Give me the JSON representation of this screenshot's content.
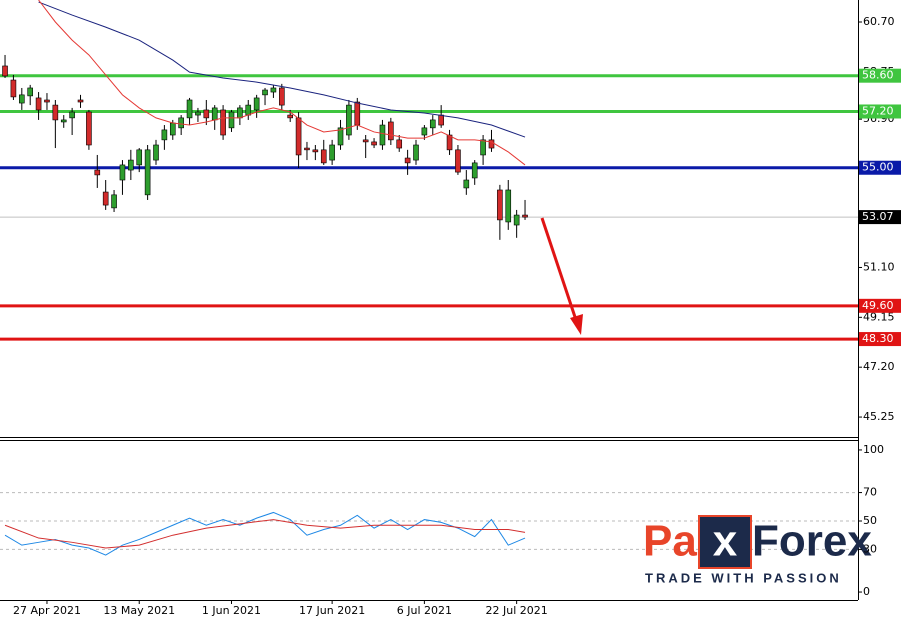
{
  "chart_data": {
    "type": "candlestick",
    "up_color": "#2e9e2e",
    "down_color": "#d22b2b",
    "candles": {
      "open": [
        58.98,
        58.43,
        57.53,
        57.81,
        57.73,
        57.65,
        57.45,
        56.79,
        56.95,
        57.65,
        57.18,
        54.91,
        54.05,
        53.43,
        54.52,
        54.91,
        55.11,
        53.94,
        55.3,
        56.09,
        56.28,
        56.56,
        56.95,
        57.06,
        57.26,
        56.87,
        57.26,
        56.56,
        56.95,
        57.06,
        57.26,
        57.85,
        57.96,
        58.12,
        57.06,
        56.95,
        55.77,
        55.7,
        55.7,
        55.3,
        55.89,
        56.28,
        57.57,
        56.09,
        56.01,
        55.89,
        56.79,
        56.09,
        55.38,
        55.3,
        56.28,
        56.56,
        57.06,
        56.28,
        55.7,
        54.21,
        54.6,
        55.5,
        56.09,
        54.13,
        52.88,
        52.76,
        53.15
      ],
      "high": [
        59.41,
        58.63,
        58.12,
        58.24,
        57.96,
        57.92,
        57.65,
        57.06,
        57.34,
        57.85,
        57.26,
        55.5,
        54.52,
        54.13,
        55.3,
        55.7,
        55.77,
        55.89,
        56.09,
        56.67,
        56.87,
        57.06,
        57.73,
        57.34,
        57.65,
        57.45,
        57.45,
        57.26,
        57.45,
        57.65,
        57.85,
        58.12,
        58.24,
        58.28,
        57.26,
        57.18,
        56.01,
        55.89,
        56.09,
        56.09,
        56.87,
        57.65,
        57.73,
        56.28,
        56.16,
        56.87,
        56.95,
        56.28,
        55.7,
        56.09,
        56.67,
        57.06,
        57.45,
        56.48,
        55.89,
        54.91,
        55.3,
        56.28,
        56.48,
        54.33,
        54.52,
        53.35,
        53.74
      ],
      "low": [
        58.51,
        57.65,
        57.26,
        57.45,
        56.87,
        57.26,
        55.77,
        56.56,
        56.28,
        57.34,
        55.7,
        54.21,
        53.35,
        53.27,
        53.94,
        54.52,
        54.83,
        53.74,
        55.11,
        55.7,
        56.09,
        56.28,
        56.67,
        56.79,
        56.67,
        56.48,
        56.09,
        56.4,
        56.67,
        56.87,
        56.95,
        57.45,
        57.73,
        57.26,
        56.79,
        54.99,
        55.3,
        55.3,
        55.11,
        55.11,
        55.7,
        56.09,
        56.48,
        55.38,
        55.77,
        55.7,
        55.89,
        55.62,
        54.72,
        55.11,
        56.09,
        56.28,
        56.56,
        55.5,
        54.72,
        53.94,
        54.33,
        55.11,
        55.62,
        52.18,
        52.57,
        52.26,
        52.96
      ],
      "close": [
        58.59,
        57.77,
        57.85,
        58.12,
        57.26,
        57.57,
        56.87,
        56.87,
        57.18,
        57.57,
        55.89,
        54.72,
        53.54,
        53.94,
        55.11,
        55.3,
        55.7,
        55.7,
        55.89,
        56.48,
        56.75,
        56.95,
        57.65,
        57.18,
        56.95,
        57.34,
        56.28,
        57.18,
        57.34,
        57.45,
        57.73,
        58.04,
        58.12,
        57.45,
        56.95,
        55.5,
        55.7,
        55.62,
        55.19,
        55.89,
        56.56,
        57.45,
        56.67,
        56.01,
        55.89,
        56.67,
        56.09,
        55.77,
        55.19,
        55.89,
        56.56,
        56.87,
        56.67,
        55.7,
        54.83,
        54.52,
        55.19,
        56.09,
        55.77,
        52.96,
        54.13,
        53.15,
        53.07
      ]
    },
    "xlim": [
      -0.6,
      101.7
    ],
    "xticks": [
      {
        "value": 5,
        "label": "27 Apr 2021"
      },
      {
        "value": 16,
        "label": "13 May 2021"
      },
      {
        "value": 27,
        "label": "1 Jun 2021"
      },
      {
        "value": 39,
        "label": "17 Jun 2021"
      },
      {
        "value": 50,
        "label": "6 Jul 2021"
      },
      {
        "value": 61,
        "label": "22 Jul 2021"
      }
    ],
    "ylim": [
      44.47,
      61.56
    ],
    "yticks": [
      {
        "value": 60.7,
        "label": "60.70"
      },
      {
        "value": 58.75,
        "label": "58.75"
      },
      {
        "value": 56.9,
        "label": "56.90"
      },
      {
        "value": 51.1,
        "label": "51.10"
      },
      {
        "value": 49.15,
        "label": "49.15"
      },
      {
        "value": 47.2,
        "label": "47.20"
      },
      {
        "value": 45.25,
        "label": "45.25"
      }
    ],
    "moving_averages": [
      {
        "color": "#1a237e",
        "x": [
          4,
          8,
          12,
          16,
          20,
          22,
          26,
          30,
          34,
          38,
          42,
          46,
          50,
          54,
          58,
          62
        ],
        "values": [
          61.48,
          60.97,
          60.5,
          59.99,
          59.21,
          58.74,
          58.51,
          58.35,
          58.12,
          57.85,
          57.53,
          57.26,
          57.14,
          56.95,
          56.67,
          56.2
        ]
      },
      {
        "color": "#e53935",
        "x": [
          4,
          6,
          8,
          10,
          12,
          14,
          16,
          18,
          20,
          22,
          24,
          26,
          28,
          30,
          32,
          34,
          36,
          38,
          40,
          42,
          44,
          46,
          48,
          50,
          52,
          54,
          56,
          58,
          60,
          62
        ],
        "values": [
          61.56,
          60.7,
          59.99,
          59.41,
          58.63,
          57.85,
          57.34,
          56.95,
          56.75,
          56.67,
          56.79,
          56.95,
          56.95,
          57.18,
          57.34,
          57.18,
          56.67,
          56.4,
          56.48,
          56.67,
          56.4,
          56.28,
          56.16,
          56.16,
          56.4,
          56.09,
          56.09,
          56.01,
          55.62,
          55.11
        ]
      }
    ],
    "levels": [
      {
        "value": 58.6,
        "label": "58.60",
        "color": "#3fc53f"
      },
      {
        "value": 57.2,
        "label": "57.20",
        "color": "#3fc53f"
      },
      {
        "value": 55,
        "label": "55.00",
        "color": "#0a1aa8"
      },
      {
        "value": 49.6,
        "label": "49.60",
        "color": "#e01414"
      },
      {
        "value": 48.3,
        "label": "48.30",
        "color": "#e01414"
      }
    ],
    "current": {
      "value": 53.07,
      "label": "53.07",
      "color": "#000000"
    },
    "indicator": {
      "type": "line",
      "ylim": [
        -5.6,
        107
      ],
      "yticks": [
        100,
        70,
        50,
        30,
        0
      ],
      "levels": [
        70,
        50,
        30
      ],
      "series": [
        {
          "color": "#1e88e5",
          "x": [
            0,
            2,
            4,
            6,
            8,
            10,
            12,
            14,
            16,
            18,
            20,
            22,
            24,
            26,
            28,
            30,
            32,
            34,
            36,
            38,
            40,
            42,
            44,
            46,
            48,
            50,
            52,
            54,
            56,
            58,
            60,
            62
          ],
          "values": [
            40,
            33,
            35,
            37,
            33,
            31,
            26,
            33,
            37,
            42,
            47,
            52,
            47,
            51,
            47,
            52,
            56,
            51,
            40,
            44,
            47,
            54,
            45,
            51,
            44,
            51,
            49,
            45,
            39,
            51,
            33,
            38
          ]
        },
        {
          "color": "#d32f2f",
          "x": [
            0,
            4,
            8,
            12,
            16,
            20,
            24,
            28,
            32,
            36,
            40,
            44,
            48,
            52,
            56,
            60,
            62
          ],
          "values": [
            47,
            38,
            35,
            31,
            33,
            40,
            45,
            48,
            51,
            47,
            45,
            47,
            47,
            47,
            44,
            44,
            42
          ]
        }
      ]
    },
    "logo": {
      "parts": [
        "Pa",
        "x",
        "Forex"
      ],
      "tagline": "TRADE WITH PASSION"
    }
  }
}
